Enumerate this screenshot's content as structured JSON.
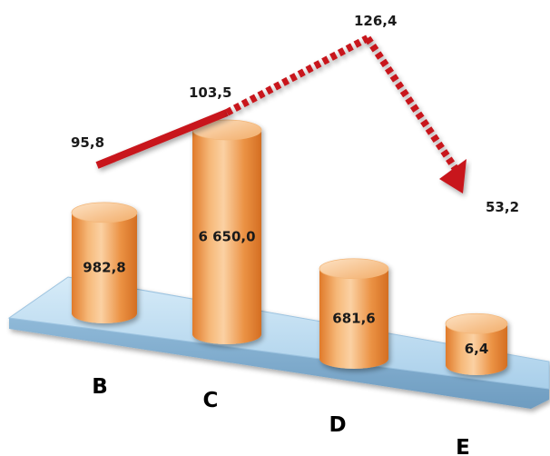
{
  "chart_data": {
    "type": "bar",
    "categories": [
      "B",
      "C",
      "D",
      "E"
    ],
    "bar_values": [
      "982,8",
      "6 650,0",
      "681,6",
      "6,4"
    ],
    "line_values": [
      "95,8",
      "103,5",
      "126,4",
      "53,2"
    ],
    "bar_numeric": [
      982.8,
      6650.0,
      681.6,
      6.4
    ],
    "line_numeric": [
      95.8,
      103.5,
      126.4,
      53.2
    ],
    "title": "",
    "xlabel": "",
    "ylabel": "",
    "colors": {
      "bar": "#f0a055",
      "line": "#c8141e",
      "platform": "#b8d8ee"
    }
  }
}
